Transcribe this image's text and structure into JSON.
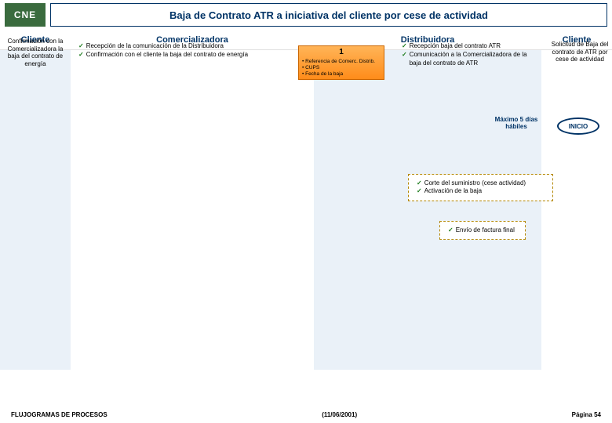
{
  "logo_text": "CNE",
  "title": "Baja de Contrato ATR a iniciativa del cliente por cese de actividad",
  "lanes": {
    "cliente1": "Cliente",
    "comercializadora": "Comercializadora",
    "distribuidora": "Distribuidora",
    "cliente2": "Cliente"
  },
  "cliente_left_text": "Confirmación con la Comercializadora la baja del contrato de energía",
  "cliente_right_text": "Solicitud de Baja del contrato de ATR por cese de actividad",
  "comer_checks": [
    "Recepción de la comunicación de la Distribuidora",
    "Confirmación con el cliente la baja del contrato de energía"
  ],
  "distrib_checks": [
    "Recepción baja del contrato ATR",
    "Comunicación a la Comercializadora de la baja del contrato de ATR"
  ],
  "orange_box": {
    "num": "1",
    "items": [
      "Referencia de Comerc. Distrib.",
      "CUPS",
      "Fecha de la baja"
    ]
  },
  "corte_box": [
    "Corte del suministro (cese actividad)",
    "Activación de la baja"
  ],
  "factura_box": [
    "Envío de factura final"
  ],
  "max_days": "Máximo 5 días hábiles",
  "inicio": "INICIO",
  "footer": {
    "left": "FLUJOGRAMAS DE PROCESOS",
    "center": "(11/06/2001)",
    "right": "Página 54"
  },
  "colors": {
    "brand_green": "#3a6b3e",
    "brand_navy": "#003366",
    "lane_tint": "#eaf1f8",
    "orange_top": "#ffb457",
    "orange_bottom": "#ff8c1a",
    "dash_border": "#b38600",
    "check_green": "#1a7a1a"
  }
}
